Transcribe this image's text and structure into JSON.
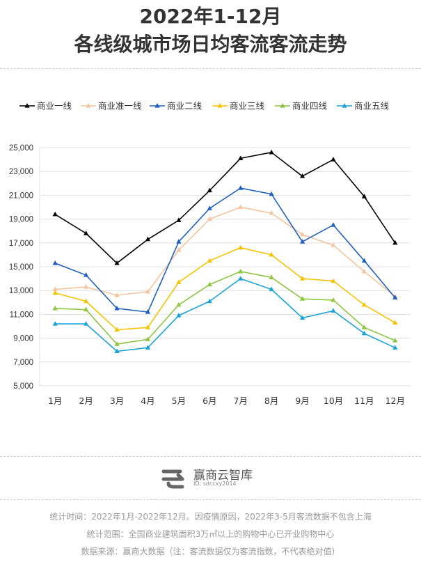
{
  "header": {
    "title_line1": "2022年1-12月",
    "title_line2": "各线级城市场日均客流客流走势"
  },
  "chart_data": {
    "type": "line",
    "categories": [
      "1月",
      "2月",
      "3月",
      "4月",
      "5月",
      "6月",
      "7月",
      "8月",
      "9月",
      "10月",
      "11月",
      "12月"
    ],
    "ylim": [
      5000,
      25000
    ],
    "yticks": [
      5000,
      7000,
      9000,
      11000,
      13000,
      15000,
      17000,
      19000,
      21000,
      23000,
      25000
    ],
    "ytick_labels": [
      "5,000",
      "7,000",
      "9,000",
      "11,000",
      "13,000",
      "15,000",
      "17,000",
      "19,000",
      "21,000",
      "23,000",
      "25,000"
    ],
    "grid": true,
    "legend_position": "top",
    "series": [
      {
        "name": "商业一线",
        "color": "#000000",
        "values": [
          19400,
          17800,
          15300,
          17300,
          18900,
          21400,
          24100,
          24600,
          22600,
          24000,
          20900,
          17000
        ]
      },
      {
        "name": "商业准一线",
        "color": "#f4c4a0",
        "values": [
          13100,
          13300,
          12600,
          12900,
          16400,
          19000,
          20000,
          19500,
          17700,
          16800,
          14600,
          12500
        ]
      },
      {
        "name": "商业二线",
        "color": "#1f5fbf",
        "values": [
          15300,
          14300,
          11500,
          11200,
          17100,
          19900,
          21600,
          21100,
          17100,
          18500,
          15500,
          12400
        ]
      },
      {
        "name": "商业三线",
        "color": "#f5c400",
        "values": [
          12800,
          12100,
          9700,
          9900,
          13700,
          15500,
          16600,
          16000,
          14000,
          13800,
          11800,
          10300
        ]
      },
      {
        "name": "商业四线",
        "color": "#8cc63f",
        "values": [
          11500,
          11400,
          8500,
          8900,
          11800,
          13500,
          14600,
          14100,
          12300,
          12200,
          9900,
          8800
        ]
      },
      {
        "name": "商业五线",
        "color": "#1aa3d9",
        "values": [
          10200,
          10200,
          7900,
          8200,
          10900,
          12100,
          14000,
          13100,
          10700,
          11300,
          9400,
          8200
        ]
      }
    ]
  },
  "brand": {
    "name": "赢商云智库",
    "id_text": "ID: sdccxy2014"
  },
  "footnotes": {
    "time": "统计时间：2022年1月-2022年12月。因疫情原因，2022年3-5月客流数据不包含上海",
    "scope": "统计范围：全国商业建筑面积3万㎡以上的购物中心已开业购物中心",
    "source": "数据来源：赢商大数据（注：客流数据仅为客流指数，不代表绝对值）"
  }
}
